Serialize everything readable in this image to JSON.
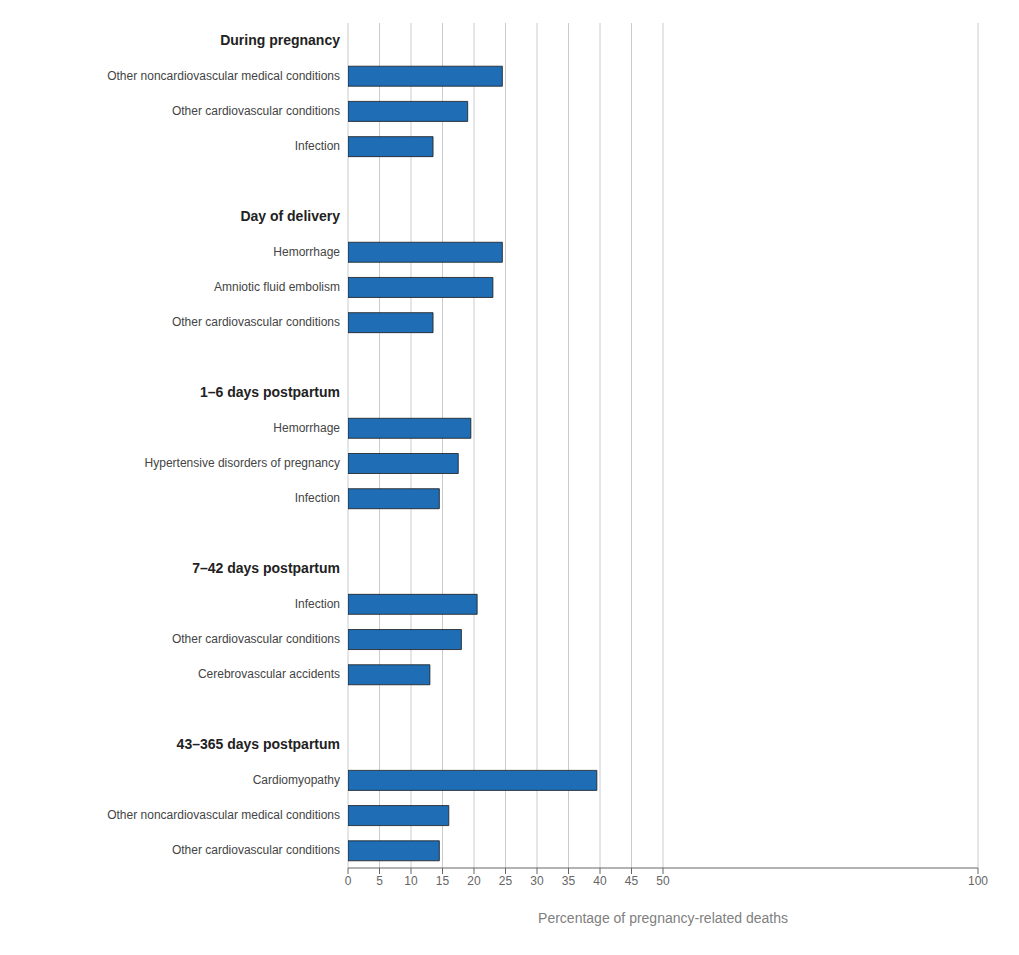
{
  "chart_data": {
    "type": "bar",
    "orientation": "horizontal",
    "xlabel": "Percentage of pregnancy-related deaths",
    "categories": [
      "During pregnancy",
      "Other noncardiovascular medical conditions",
      "Other cardiovascular conditions",
      "Infection",
      "Day of delivery",
      "Hemorrhage",
      "Amniotic fluid embolism",
      "Other cardiovascular conditions",
      "1–6 days postpartum",
      "Hemorrhage",
      "Hypertensive disorders of pregnancy",
      "Infection",
      "7–42 days postpartum",
      "Infection",
      "Other cardiovascular conditions",
      "Cerebrovascular accidents",
      "43–365 days postpartum",
      "Cardiomyopathy",
      "Other noncardiovascular medical conditions",
      "Other cardiovascular conditions"
    ],
    "values": [
      null,
      24.5,
      19.0,
      13.5,
      null,
      24.5,
      23.0,
      13.5,
      null,
      19.5,
      17.5,
      14.5,
      null,
      20.5,
      18.0,
      13.0,
      null,
      39.5,
      16.0,
      14.5
    ],
    "color": "#1F6DB5",
    "xlim": [
      0,
      100
    ],
    "xticks": [
      0,
      5,
      10,
      15,
      20,
      25,
      30,
      35,
      40,
      45,
      50,
      100
    ],
    "grid": true
  }
}
